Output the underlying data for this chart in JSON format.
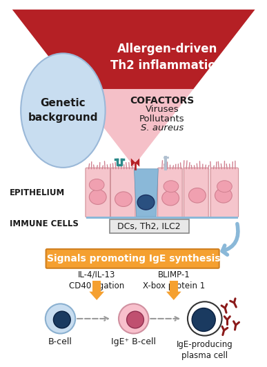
{
  "bg_color": "#ffffff",
  "funnel_top_color": "#b52025",
  "funnel_bottom_color": "#f5c0c8",
  "funnel_top_text": "Allergen-driven\nTh2 inflammation",
  "funnel_top_text_color": "#ffffff",
  "ellipse_fill": "#c8ddf0",
  "ellipse_stroke": "#9ab8d8",
  "ellipse_text": "Genetic\nbackground",
  "ellipse_text_color": "#1a1a1a",
  "cofactors_title": "COFACTORS",
  "cofactors_items": [
    "Viruses",
    "Pollutants",
    "S. aureus"
  ],
  "cofactors_italic": [
    false,
    false,
    true
  ],
  "cofactors_text_color": "#1a1a1a",
  "epithelium_label": "EPITHELIUM",
  "immune_label": "IMMUNE CELLS",
  "dcs_box_text": "DCs, Th2, ILC2",
  "signal_box_text": "Signals promoting IgE synthesis",
  "signal_box_color": "#f5a030",
  "signal_box_text_color": "#ffffff",
  "left_signal_text": "IL-4/IL-13\nCD40 ligation",
  "right_signal_text": "BLIMP-1\nX-box protein 1",
  "bcell_label": "B-cell",
  "ige_bcell_label": "IgE⁺ B-cell",
  "plasma_label": "IgE-producing\nplasma cell",
  "orange_arrow_color": "#f5a030",
  "gray_arrow_color": "#999999",
  "blue_arrow_color": "#8ab8d8",
  "epi_cell_fill": "#f5c5cc",
  "epi_cell_stroke": "#d09098",
  "epi_bg_fill": "#fae0e4",
  "dc_fill": "#8ab8d8",
  "dc_nucleus_fill": "#2a5080",
  "cell1_outer": "#c8ddf0",
  "cell1_nucleus": "#1a3a60",
  "cell2_outer": "#f8c0cc",
  "cell2_nucleus": "#c05070",
  "cell3_outer": "#ffffff",
  "cell3_nucleus": "#1a3a60",
  "cell3_body": "#1a3a60",
  "ige_y_color": "#8b1a1a"
}
